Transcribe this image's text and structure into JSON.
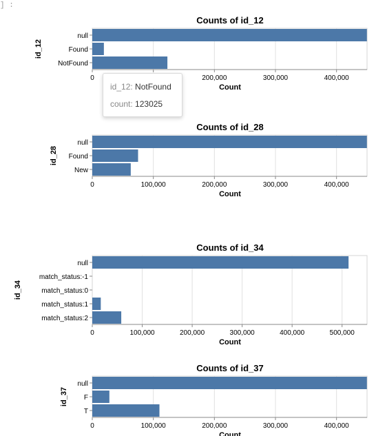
{
  "prompt": "] :",
  "tooltip": {
    "row1_key": "id_12:",
    "row1_value": "NotFound",
    "row2_key": "count:",
    "row2_value": "123025"
  },
  "chart_data": [
    {
      "type": "bar",
      "orientation": "horizontal",
      "title": "Counts of id_12",
      "xlabel": "Count",
      "ylabel": "id_12",
      "categories": [
        "null",
        "Found",
        "NotFound"
      ],
      "values": [
        449730,
        19000,
        123025
      ],
      "xlim": [
        0,
        450000
      ],
      "xticks": [
        0,
        100000,
        200000,
        300000,
        400000
      ],
      "xtick_labels": [
        "0",
        "100,000",
        "200,000",
        "300,000",
        "400,000"
      ],
      "grid": true,
      "bar_color": "#4c78a8"
    },
    {
      "type": "bar",
      "orientation": "horizontal",
      "title": "Counts of id_28",
      "xlabel": "Count",
      "ylabel": "id_28",
      "categories": [
        "null",
        "Found",
        "New"
      ],
      "values": [
        449730,
        75000,
        63000
      ],
      "xlim": [
        0,
        450000
      ],
      "xticks": [
        0,
        100000,
        200000,
        300000,
        400000
      ],
      "xtick_labels": [
        "0",
        "100,000",
        "200,000",
        "300,000",
        "400,000"
      ],
      "grid": true,
      "bar_color": "#4c78a8"
    },
    {
      "type": "bar",
      "orientation": "horizontal",
      "title": "Counts of id_34",
      "xlabel": "Count",
      "ylabel": "id_34",
      "categories": [
        "null",
        "match_status:-1",
        "match_status:0",
        "match_status:1",
        "match_status:2"
      ],
      "values": [
        512975,
        0,
        0,
        17000,
        58000
      ],
      "xlim": [
        0,
        550000
      ],
      "xticks": [
        0,
        100000,
        200000,
        300000,
        400000,
        500000
      ],
      "xtick_labels": [
        "0",
        "100,000",
        "200,000",
        "300,000",
        "400,000",
        "500,000"
      ],
      "grid": true,
      "bar_color": "#4c78a8"
    },
    {
      "type": "bar",
      "orientation": "horizontal",
      "title": "Counts of id_37",
      "xlabel": "Count",
      "ylabel": "id_37",
      "categories": [
        "null",
        "F",
        "T"
      ],
      "values": [
        449730,
        28000,
        110000
      ],
      "xlim": [
        0,
        450000
      ],
      "xticks": [
        0,
        100000,
        200000,
        300000,
        400000
      ],
      "xtick_labels": [
        "0",
        "100,000",
        "200,000",
        "300,000",
        "400,000"
      ],
      "grid": true,
      "bar_color": "#4c78a8"
    }
  ]
}
